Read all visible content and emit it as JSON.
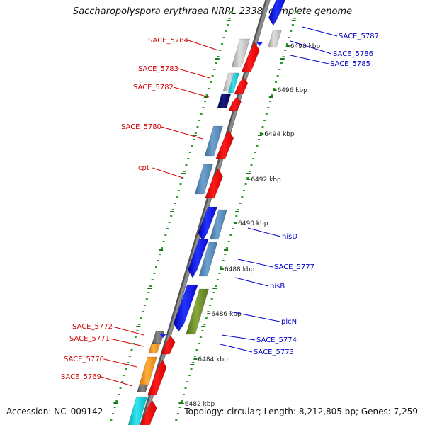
{
  "title": "Saccharopolyspora erythraea NRRL 2338, complete genome",
  "accession_text": "Accession: NC_009142",
  "topology_text": "Topology: circular; Length: 8,212,805 bp; Genes: 7,259",
  "colors": {
    "backbone": "#8c8c8c",
    "tick_major": "#1a7a1a",
    "tick_minor": "#2c9c2c",
    "left_label": "#d40000",
    "right_label": "#0000cc",
    "scale_text": "#222222"
  },
  "scale_labels": [
    "6498 kbp",
    "6496 kbp",
    "6494 kbp",
    "6492 kbp",
    "6490 kbp",
    "6488 kbp",
    "6486 kbp",
    "6484 kbp",
    "6482 kbp"
  ],
  "left_genes": [
    "SACE_5784",
    "SACE_5783",
    "SACE_5782",
    "SACE_5780",
    "cpt",
    "SACE_5772",
    "SACE_5771",
    "SACE_5770",
    "SACE_5769"
  ],
  "right_genes": [
    "SACE_5787",
    "SACE_5786",
    "SACE_5785",
    "hisD",
    "SACE_5777",
    "hisB",
    "plcN",
    "SACE_5774",
    "SACE_5773"
  ]
}
